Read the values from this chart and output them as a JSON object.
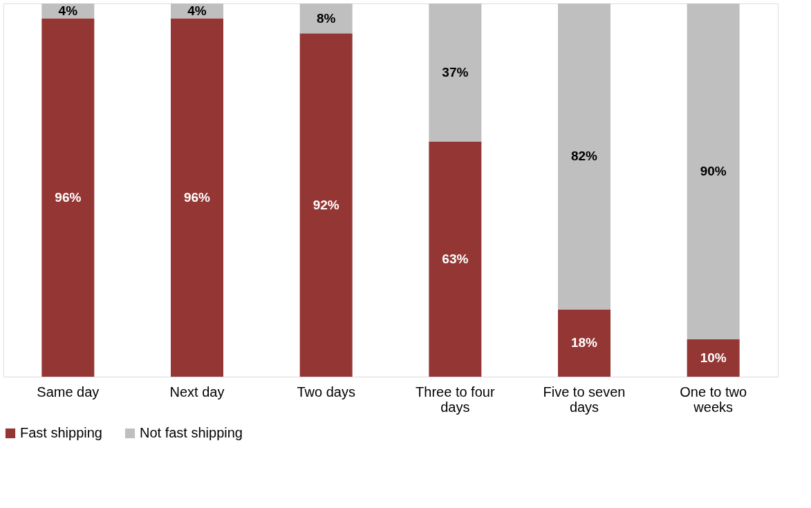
{
  "chart_data": {
    "type": "bar",
    "stacked": true,
    "categories": [
      "Same day",
      "Next day",
      "Two days",
      "Three to four days",
      "Five to seven days",
      "One to two weeks"
    ],
    "series": [
      {
        "name": "Fast shipping",
        "color": "#943634",
        "values": [
          96,
          96,
          92,
          63,
          18,
          10
        ],
        "value_labels": [
          "96%",
          "96%",
          "92%",
          "63%",
          "18%",
          "10%"
        ]
      },
      {
        "name": "Not fast shipping",
        "color": "#bfbfbf",
        "values": [
          4,
          4,
          8,
          37,
          82,
          90
        ],
        "value_labels": [
          "4%",
          "4%",
          "8%",
          "37%",
          "82%",
          "90%"
        ]
      }
    ],
    "ylim": [
      0,
      100
    ],
    "tick_labels": "x",
    "grid": false,
    "legend": "bottom"
  }
}
